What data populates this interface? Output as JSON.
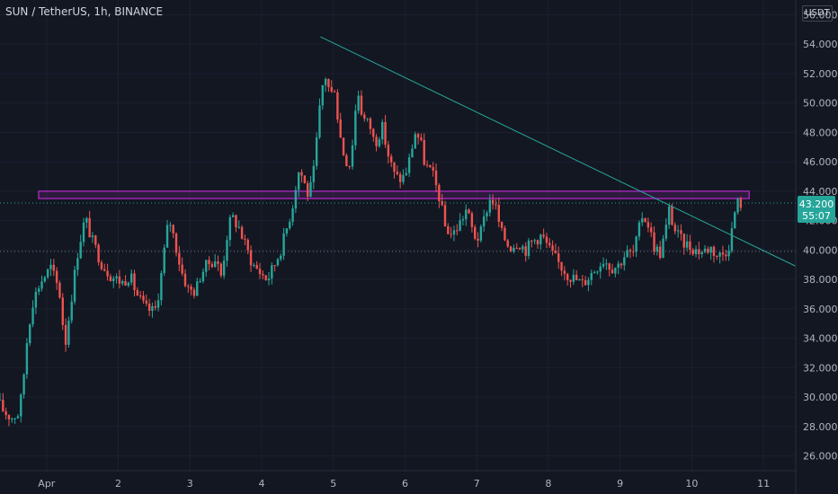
{
  "header": {
    "title": "SUN / TetherUS, 1h, BINANCE",
    "unit": "USDT"
  },
  "price_tag": {
    "price": "43.200",
    "countdown": "55:07"
  },
  "colors": {
    "background": "#131722",
    "up": "#26a69a",
    "down": "#ef5350",
    "zone": "#9c27b0",
    "trendline": "#26a69a",
    "axis_text": "#b2b5be"
  },
  "chart_data": {
    "type": "candlestick",
    "title": "SUN / TetherUS, 1h, BINANCE",
    "ylabel": "USDT",
    "ylim": [
      25,
      57
    ],
    "y_ticks": [
      "26.000",
      "28.000",
      "30.000",
      "32.000",
      "34.000",
      "36.000",
      "38.000",
      "40.000",
      "42.000",
      "44.000",
      "46.000",
      "48.000",
      "50.000",
      "52.000",
      "54.000",
      "56.000"
    ],
    "x_ticks": [
      "Apr",
      "2",
      "3",
      "4",
      "5",
      "6",
      "7",
      "8",
      "9",
      "10",
      "11"
    ],
    "x_domain_days": [
      -0.65,
      10.45
    ],
    "price_path": [
      [
        -0.65,
        29.8
      ],
      [
        -0.55,
        29.0
      ],
      [
        -0.45,
        28.6
      ],
      [
        -0.35,
        28.9
      ],
      [
        -0.3,
        30.3
      ],
      [
        -0.22,
        34.5
      ],
      [
        -0.15,
        36.5
      ],
      [
        -0.05,
        37.8
      ],
      [
        0.1,
        38.8
      ],
      [
        0.22,
        37.2
      ],
      [
        0.3,
        33.5
      ],
      [
        0.38,
        36.5
      ],
      [
        0.48,
        40.0
      ],
      [
        0.58,
        42.2
      ],
      [
        0.68,
        40.6
      ],
      [
        0.82,
        39.0
      ],
      [
        0.95,
        38.2
      ],
      [
        1.1,
        37.8
      ],
      [
        1.2,
        38.3
      ],
      [
        1.3,
        37.0
      ],
      [
        1.42,
        36.0
      ],
      [
        1.55,
        35.8
      ],
      [
        1.62,
        37.5
      ],
      [
        1.7,
        40.6
      ],
      [
        1.75,
        42.2
      ],
      [
        1.82,
        40.8
      ],
      [
        1.92,
        38.6
      ],
      [
        2.02,
        37.3
      ],
      [
        2.12,
        37.2
      ],
      [
        2.2,
        38.5
      ],
      [
        2.3,
        39.1
      ],
      [
        2.4,
        39.4
      ],
      [
        2.48,
        38.2
      ],
      [
        2.55,
        40.8
      ],
      [
        2.62,
        42.3
      ],
      [
        2.72,
        41.6
      ],
      [
        2.82,
        40.2
      ],
      [
        2.92,
        39.0
      ],
      [
        3.02,
        38.5
      ],
      [
        3.12,
        38.0
      ],
      [
        3.22,
        39.0
      ],
      [
        3.32,
        40.2
      ],
      [
        3.42,
        42.0
      ],
      [
        3.48,
        43.2
      ],
      [
        3.52,
        44.5
      ],
      [
        3.57,
        45.6
      ],
      [
        3.62,
        44.8
      ],
      [
        3.7,
        43.6
      ],
      [
        3.77,
        45.4
      ],
      [
        3.82,
        48.0
      ],
      [
        3.87,
        50.5
      ],
      [
        3.92,
        52.0
      ],
      [
        3.97,
        51.2
      ],
      [
        4.0,
        50.2
      ],
      [
        4.05,
        51.5
      ],
      [
        4.12,
        48.2
      ],
      [
        4.2,
        46.2
      ],
      [
        4.28,
        45.8
      ],
      [
        4.33,
        48.5
      ],
      [
        4.38,
        51.0
      ],
      [
        4.45,
        49.0
      ],
      [
        4.55,
        48.5
      ],
      [
        4.62,
        47.2
      ],
      [
        4.72,
        48.4
      ],
      [
        4.82,
        46.2
      ],
      [
        4.9,
        45.0
      ],
      [
        5.0,
        44.8
      ],
      [
        5.08,
        45.6
      ],
      [
        5.18,
        48.0
      ],
      [
        5.25,
        47.5
      ],
      [
        5.32,
        45.8
      ],
      [
        5.42,
        45.2
      ],
      [
        5.52,
        43.6
      ],
      [
        5.6,
        41.6
      ],
      [
        5.7,
        41.0
      ],
      [
        5.8,
        41.8
      ],
      [
        5.9,
        42.8
      ],
      [
        6.0,
        41.0
      ],
      [
        6.08,
        40.8
      ],
      [
        6.18,
        42.8
      ],
      [
        6.24,
        43.6
      ],
      [
        6.3,
        43.0
      ],
      [
        6.38,
        41.2
      ],
      [
        6.5,
        40.2
      ],
      [
        6.62,
        40.6
      ],
      [
        6.72,
        40.0
      ],
      [
        6.82,
        40.6
      ],
      [
        6.95,
        41.0
      ],
      [
        7.08,
        39.8
      ],
      [
        7.2,
        39.0
      ],
      [
        7.32,
        38.3
      ],
      [
        7.42,
        38.0
      ],
      [
        7.52,
        37.7
      ],
      [
        7.62,
        38.3
      ],
      [
        7.72,
        38.9
      ],
      [
        7.82,
        39.4
      ],
      [
        7.92,
        38.8
      ],
      [
        8.02,
        39.0
      ],
      [
        8.12,
        39.8
      ],
      [
        8.22,
        39.7
      ],
      [
        8.3,
        41.2
      ],
      [
        8.34,
        42.4
      ],
      [
        8.42,
        42.0
      ],
      [
        8.52,
        40.2
      ],
      [
        8.6,
        39.8
      ],
      [
        8.68,
        41.4
      ],
      [
        8.72,
        42.8
      ],
      [
        8.8,
        41.4
      ],
      [
        8.9,
        40.6
      ],
      [
        9.0,
        40.3
      ],
      [
        9.1,
        40.0
      ],
      [
        9.2,
        39.9
      ],
      [
        9.3,
        40.2
      ],
      [
        9.4,
        39.6
      ],
      [
        9.5,
        39.8
      ],
      [
        9.58,
        40.6
      ],
      [
        9.63,
        42.4
      ],
      [
        9.68,
        43.2
      ],
      [
        9.72,
        43.2
      ]
    ],
    "resistance_zone": {
      "low": 43.5,
      "high": 44.0,
      "start": -0.65,
      "end": 9.8
    },
    "trendline": {
      "start": [
        3.82,
        54.5
      ],
      "end": [
        10.45,
        38.9
      ]
    },
    "last_price": 43.2,
    "reference_price": 39.9
  }
}
